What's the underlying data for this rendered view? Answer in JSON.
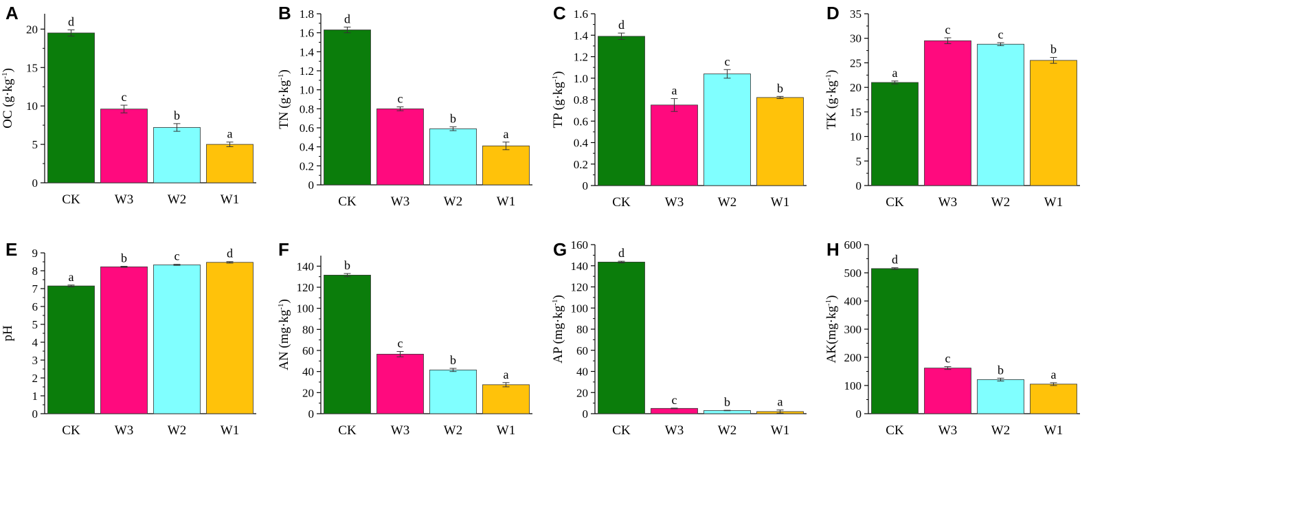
{
  "chart_data": [
    {
      "panel": "A",
      "type": "bar",
      "ylabel": "OC (g·kg",
      "ylabel_sup": "-1",
      "ylabel_end": ")",
      "categories": [
        "CK",
        "W3",
        "W2",
        "W1"
      ],
      "values": [
        19.5,
        9.6,
        7.2,
        5.0
      ],
      "errors": [
        0.4,
        0.5,
        0.5,
        0.3
      ],
      "letters": [
        "d",
        "c",
        "b",
        "a"
      ],
      "ylim": [
        0,
        22
      ],
      "ticks": [
        0,
        5,
        10,
        15,
        20
      ],
      "tick_labels": [
        "0",
        "5",
        "10",
        "15",
        "20"
      ]
    },
    {
      "panel": "B",
      "type": "bar",
      "ylabel": "TN (g·kg",
      "ylabel_sup": "-1",
      "ylabel_end": ")",
      "categories": [
        "CK",
        "W3",
        "W2",
        "W1"
      ],
      "values": [
        1.63,
        0.8,
        0.59,
        0.41
      ],
      "errors": [
        0.03,
        0.02,
        0.02,
        0.04
      ],
      "letters": [
        "d",
        "c",
        "b",
        "a"
      ],
      "ylim": [
        0,
        1.8
      ],
      "ticks": [
        0,
        0.2,
        0.4,
        0.6,
        0.8,
        1.0,
        1.2,
        1.4,
        1.6,
        1.8
      ],
      "tick_labels": [
        "0",
        "0.2",
        "0.4",
        "0.6",
        "0.8",
        "1.0",
        "1.2",
        "1.4",
        "1.6",
        "1.8"
      ]
    },
    {
      "panel": "C",
      "type": "bar",
      "ylabel": "TP (g·kg",
      "ylabel_sup": "-1",
      "ylabel_end": ")",
      "categories": [
        "CK",
        "W3",
        "W2",
        "W1"
      ],
      "values": [
        1.39,
        0.75,
        1.04,
        0.82
      ],
      "errors": [
        0.03,
        0.06,
        0.04,
        0.01
      ],
      "letters": [
        "d",
        "a",
        "c",
        "b"
      ],
      "ylim": [
        0,
        1.6
      ],
      "ticks": [
        0,
        0.2,
        0.4,
        0.6,
        0.8,
        1.0,
        1.2,
        1.4,
        1.6
      ],
      "tick_labels": [
        "0",
        "0.2",
        "0.4",
        "0.6",
        "0.8",
        "1.0",
        "1.2",
        "1.4",
        "1.6"
      ]
    },
    {
      "panel": "D",
      "type": "bar",
      "ylabel": "TK (g·kg",
      "ylabel_sup": "-1",
      "ylabel_end": ")",
      "categories": [
        "CK",
        "W3",
        "W2",
        "W1"
      ],
      "values": [
        21.0,
        29.5,
        28.8,
        25.5
      ],
      "errors": [
        0.3,
        0.6,
        0.3,
        0.6
      ],
      "letters": [
        "a",
        "c",
        "c",
        "b"
      ],
      "ylim": [
        0,
        35
      ],
      "ticks": [
        0,
        5,
        10,
        15,
        20,
        25,
        30,
        35
      ],
      "tick_labels": [
        "0",
        "5",
        "10",
        "15",
        "20",
        "25",
        "30",
        "35"
      ]
    },
    {
      "panel": "E",
      "type": "bar",
      "ylabel": "pH",
      "ylabel_sup": "",
      "ylabel_end": "",
      "categories": [
        "CK",
        "W3",
        "W2",
        "W1"
      ],
      "values": [
        7.15,
        8.22,
        8.33,
        8.47
      ],
      "errors": [
        0.05,
        0.03,
        0.03,
        0.04
      ],
      "letters": [
        "a",
        "b",
        "c",
        "d"
      ],
      "ylim": [
        0,
        9
      ],
      "ticks": [
        0,
        1,
        2,
        3,
        4,
        5,
        6,
        7,
        8,
        9
      ],
      "tick_labels": [
        "0",
        "1",
        "2",
        "3",
        "4",
        "5",
        "6",
        "7",
        "8",
        "9"
      ]
    },
    {
      "panel": "F",
      "type": "bar",
      "ylabel": "AN (mg·kg",
      "ylabel_sup": "-1",
      "ylabel_end": ")",
      "categories": [
        "CK",
        "W3",
        "W2",
        "W1"
      ],
      "values": [
        131.5,
        56.5,
        41.5,
        27.5
      ],
      "errors": [
        1.5,
        2.5,
        1.5,
        2.0
      ],
      "letters": [
        "b",
        "c",
        "b",
        "a"
      ],
      "ylim": [
        0,
        150
      ],
      "ticks": [
        0,
        20,
        40,
        60,
        80,
        100,
        120,
        140
      ],
      "tick_labels": [
        "0",
        "20",
        "40",
        "60",
        "80",
        "100",
        "120",
        "140"
      ]
    },
    {
      "panel": "G",
      "type": "bar",
      "ylabel": "AP (mg·kg",
      "ylabel_sup": "-1",
      "ylabel_end": ")",
      "categories": [
        "CK",
        "W3",
        "W2",
        "W1"
      ],
      "values": [
        143.5,
        5.0,
        3.0,
        2.0
      ],
      "errors": [
        0.8,
        0.3,
        0.2,
        1.5
      ],
      "letters": [
        "d",
        "c",
        "b",
        "a"
      ],
      "ylim": [
        0,
        160
      ],
      "ticks": [
        0,
        20,
        40,
        60,
        80,
        100,
        120,
        140,
        160
      ],
      "tick_labels": [
        "0",
        "20",
        "40",
        "60",
        "80",
        "100",
        "120",
        "140",
        "160"
      ]
    },
    {
      "panel": "H",
      "type": "bar",
      "ylabel": "AK(mg·kg",
      "ylabel_sup": "-1",
      "ylabel_end": ")",
      "categories": [
        "CK",
        "W3",
        "W2",
        "W1"
      ],
      "values": [
        515,
        162,
        121,
        105
      ],
      "errors": [
        3,
        5,
        5,
        5
      ],
      "letters": [
        "d",
        "c",
        "b",
        "a"
      ],
      "ylim": [
        0,
        600
      ],
      "ticks": [
        0,
        100,
        200,
        300,
        400,
        500,
        600
      ],
      "tick_labels": [
        "0",
        "100",
        "200",
        "300",
        "400",
        "500",
        "600"
      ]
    }
  ],
  "colors": {
    "CK": "#0b7d0b",
    "W3": "#ff0a7e",
    "W2": "#80ffff",
    "W1": "#ffc20a",
    "axis": "#000000"
  }
}
